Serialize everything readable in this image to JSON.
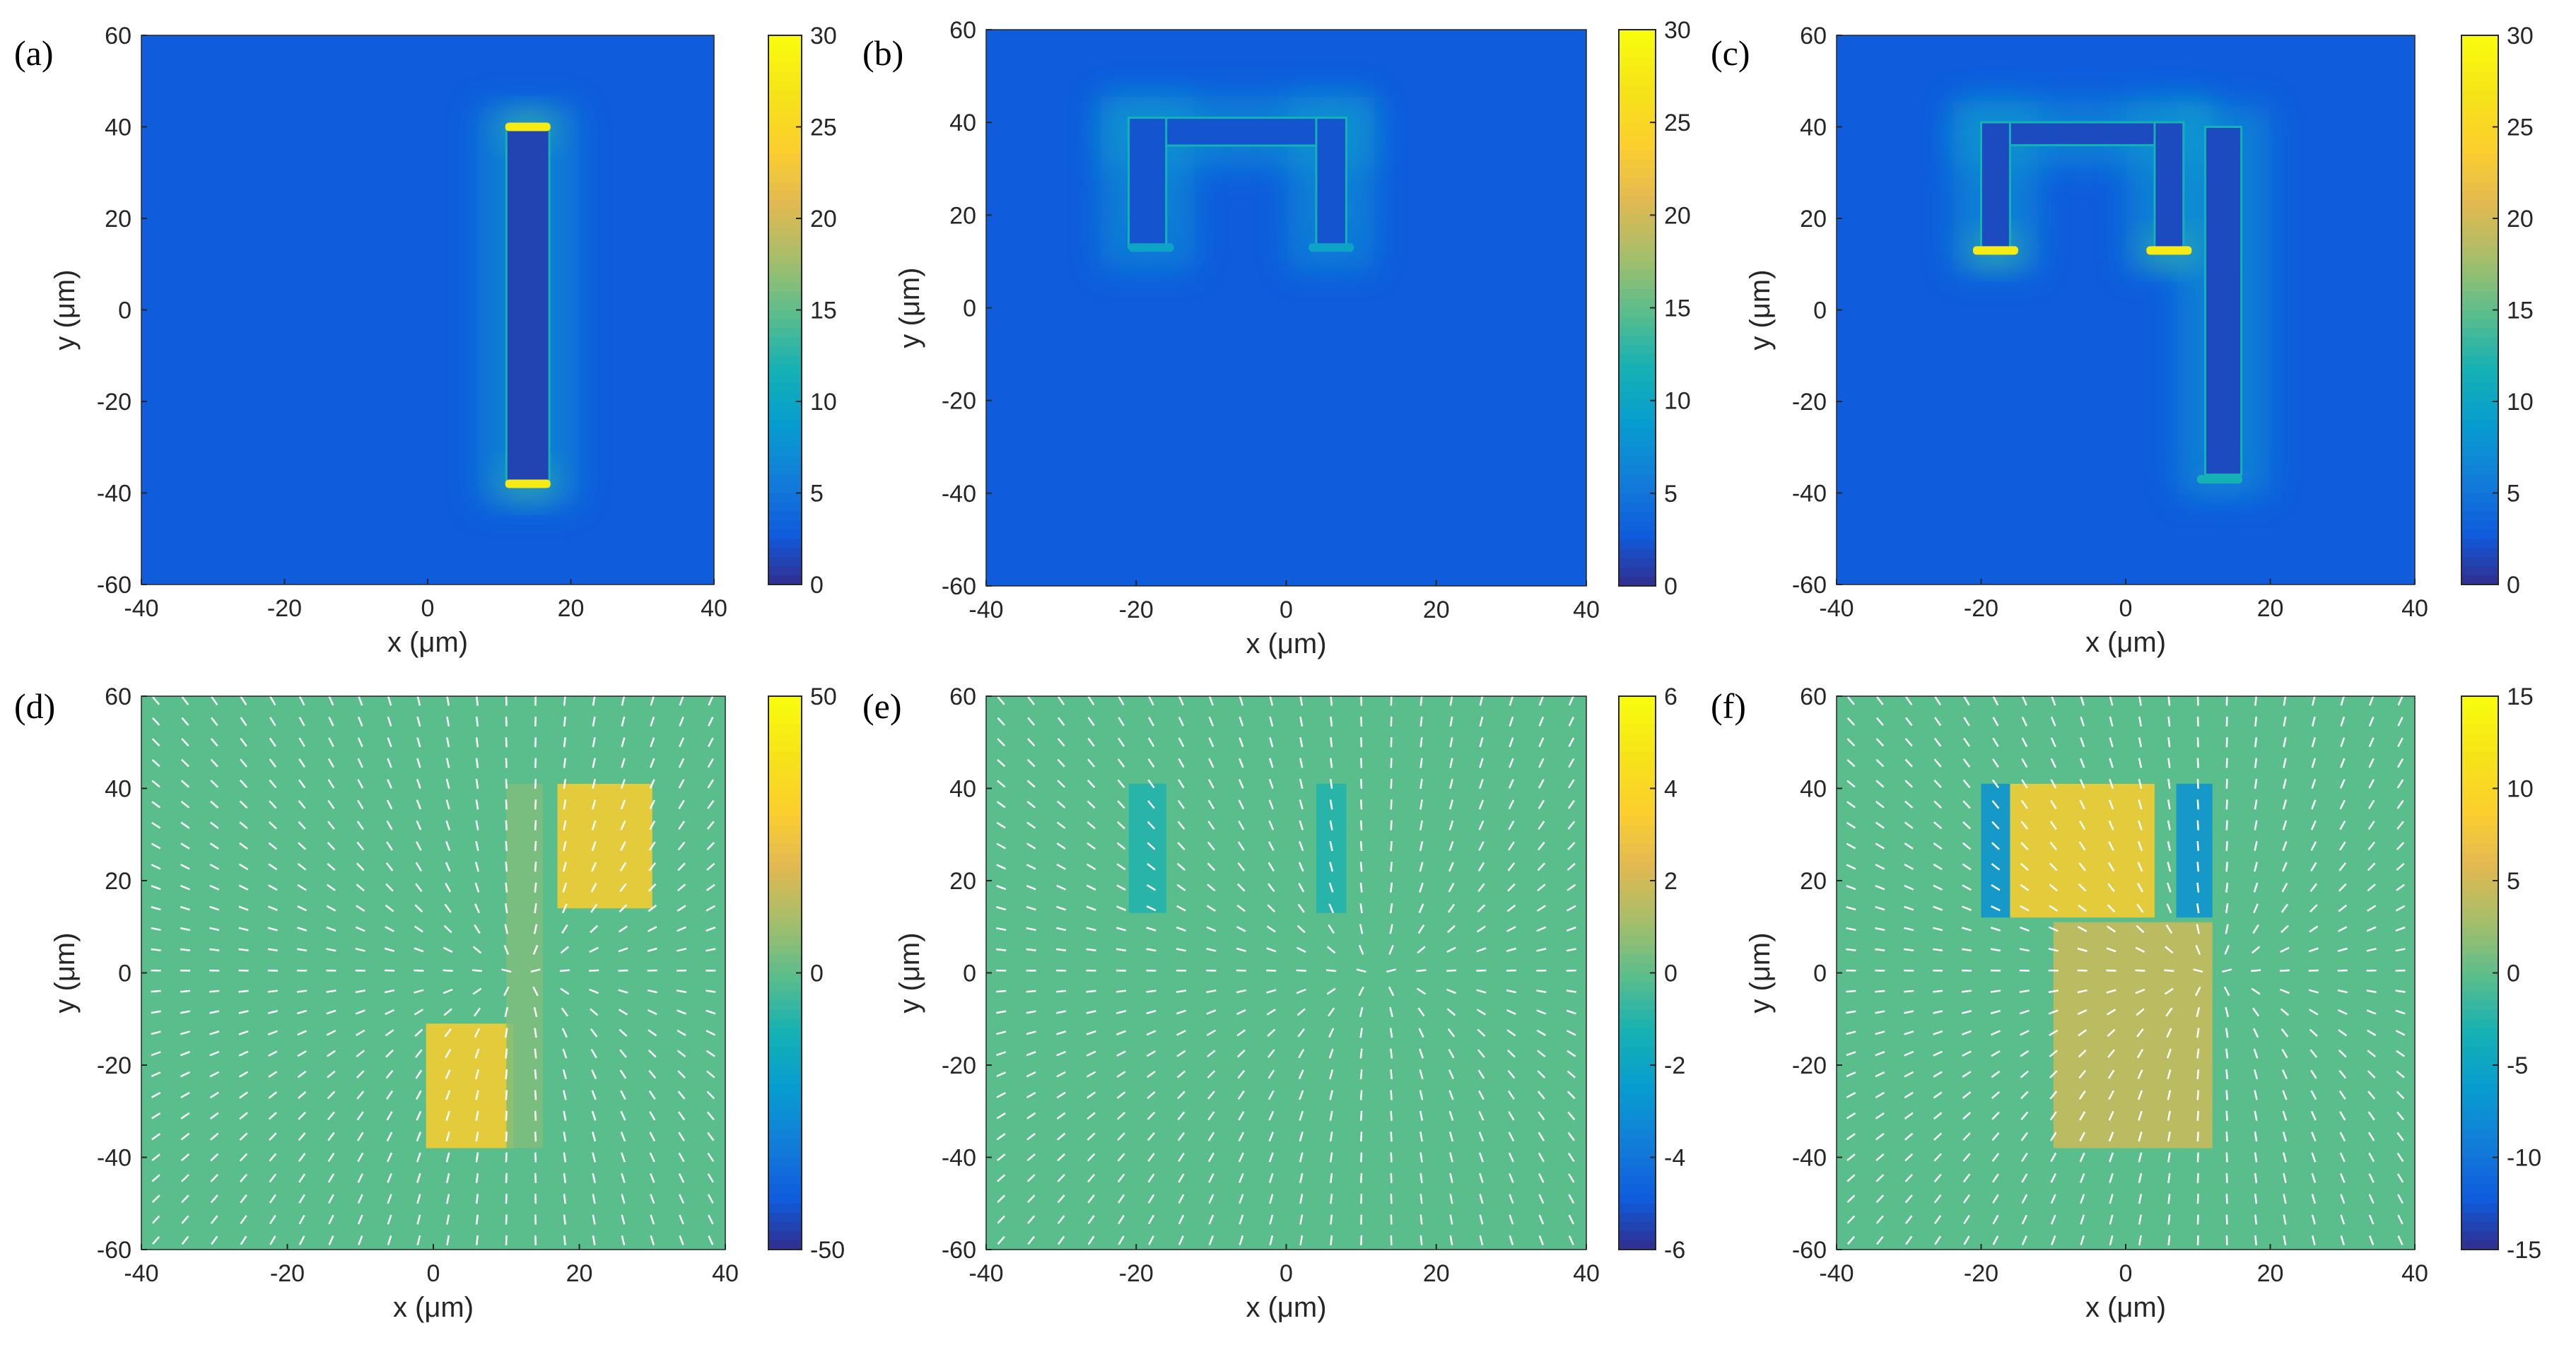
{
  "figure": {
    "description_free": true
  },
  "chart_data": [
    {
      "id": "a",
      "letter": "(a)",
      "type": "heatmap",
      "xlabel": "x (μm)",
      "ylabel": "y (μm)",
      "xlim": [
        -40,
        40
      ],
      "ylim": [
        -60,
        60
      ],
      "xticks": [
        -40,
        -20,
        0,
        20,
        40
      ],
      "yticks": [
        -60,
        -40,
        -20,
        0,
        20,
        40,
        60
      ],
      "colorbar": {
        "min": 0,
        "max": 30,
        "ticks": [
          0,
          5,
          10,
          15,
          20,
          25,
          30
        ]
      },
      "background_value": 3,
      "structures": [
        {
          "type": "bar",
          "x": [
            11,
            17
          ],
          "y": [
            -38,
            40
          ],
          "value": 1.5
        }
      ],
      "hotspots": [
        {
          "x": 14,
          "y": 40,
          "value": 28
        },
        {
          "x": 14,
          "y": -38,
          "value": 28
        }
      ]
    },
    {
      "id": "b",
      "letter": "(b)",
      "type": "heatmap",
      "xlabel": "x (μm)",
      "ylabel": "y (μm)",
      "xlim": [
        -40,
        40
      ],
      "ylim": [
        -60,
        60
      ],
      "xticks": [
        -40,
        -20,
        0,
        20,
        40
      ],
      "yticks": [
        -60,
        -40,
        -20,
        0,
        20,
        40,
        60
      ],
      "colorbar": {
        "min": 0,
        "max": 30,
        "ticks": [
          0,
          5,
          10,
          15,
          20,
          25,
          30
        ]
      },
      "background_value": 3,
      "structures": [
        {
          "type": "bar",
          "x": [
            -21,
            8
          ],
          "y": [
            35,
            41
          ],
          "value": 2.5
        },
        {
          "type": "bar",
          "x": [
            -21,
            -16
          ],
          "y": [
            13,
            41
          ],
          "value": 2.5
        },
        {
          "type": "bar",
          "x": [
            4,
            8
          ],
          "y": [
            13,
            41
          ],
          "value": 2.5
        }
      ],
      "hotspots": [
        {
          "x": -18,
          "y": 13,
          "value": 10
        },
        {
          "x": 6,
          "y": 13,
          "value": 10
        }
      ]
    },
    {
      "id": "c",
      "letter": "(c)",
      "type": "heatmap",
      "xlabel": "x (μm)",
      "ylabel": "y (μm)",
      "xlim": [
        -40,
        40
      ],
      "ylim": [
        -60,
        60
      ],
      "xticks": [
        -40,
        -20,
        0,
        20,
        40
      ],
      "yticks": [
        -60,
        -40,
        -20,
        0,
        20,
        40,
        60
      ],
      "colorbar": {
        "min": 0,
        "max": 30,
        "ticks": [
          0,
          5,
          10,
          15,
          20,
          25,
          30
        ]
      },
      "background_value": 3,
      "structures": [
        {
          "type": "bar",
          "x": [
            -20,
            8
          ],
          "y": [
            36,
            41
          ],
          "value": 2
        },
        {
          "type": "bar",
          "x": [
            -20,
            -16
          ],
          "y": [
            13,
            41
          ],
          "value": 2
        },
        {
          "type": "bar",
          "x": [
            4,
            8
          ],
          "y": [
            13,
            41
          ],
          "value": 2
        },
        {
          "type": "bar",
          "x": [
            11,
            16
          ],
          "y": [
            -36,
            40
          ],
          "value": 2
        }
      ],
      "hotspots": [
        {
          "x": -18,
          "y": 13,
          "value": 28
        },
        {
          "x": 6,
          "y": 13,
          "value": 28
        },
        {
          "x": 13,
          "y": -37,
          "value": 12
        }
      ]
    },
    {
      "id": "d",
      "letter": "(d)",
      "type": "heatmap",
      "xlabel": "x (μm)",
      "ylabel": "y (μm)",
      "xlim": [
        -40,
        40
      ],
      "ylim": [
        -60,
        60
      ],
      "xticks": [
        -40,
        -20,
        0,
        20,
        40
      ],
      "yticks": [
        -60,
        -40,
        -20,
        0,
        20,
        40,
        60
      ],
      "colorbar": {
        "min": -50,
        "max": 50,
        "ticks": [
          -50,
          0,
          50
        ]
      },
      "background_value": 0,
      "regions": [
        {
          "x": [
            17,
            30
          ],
          "y": [
            14,
            41
          ],
          "value": 30
        },
        {
          "x": [
            -1,
            11
          ],
          "y": [
            -38,
            -11
          ],
          "value": 30
        },
        {
          "x": [
            10,
            15
          ],
          "y": [
            -38,
            41
          ],
          "value": 5
        }
      ],
      "arrows": true
    },
    {
      "id": "e",
      "letter": "(e)",
      "type": "heatmap",
      "xlabel": "x (μm)",
      "ylabel": "y (μm)",
      "xlim": [
        -40,
        40
      ],
      "ylim": [
        -60,
        60
      ],
      "xticks": [
        -40,
        -20,
        0,
        20,
        40
      ],
      "yticks": [
        -60,
        -40,
        -20,
        0,
        20,
        40,
        60
      ],
      "colorbar": {
        "min": -6,
        "max": 6,
        "ticks": [
          -6,
          -4,
          -2,
          0,
          2,
          4,
          6
        ]
      },
      "background_value": 0,
      "regions": [
        {
          "x": [
            -21,
            -16
          ],
          "y": [
            13,
            41
          ],
          "value": -1
        },
        {
          "x": [
            4,
            8
          ],
          "y": [
            13,
            41
          ],
          "value": -1
        }
      ],
      "arrows": true
    },
    {
      "id": "f",
      "letter": "(f)",
      "type": "heatmap",
      "xlabel": "x (μm)",
      "ylabel": "y (μm)",
      "xlim": [
        -40,
        40
      ],
      "ylim": [
        -60,
        60
      ],
      "xticks": [
        -40,
        -20,
        0,
        20,
        40
      ],
      "yticks": [
        -60,
        -40,
        -20,
        0,
        20,
        40,
        60
      ],
      "colorbar": {
        "min": -15,
        "max": 15,
        "ticks": [
          -15,
          -10,
          -5,
          0,
          5,
          10,
          15
        ]
      },
      "background_value": 0,
      "regions": [
        {
          "x": [
            -16,
            4
          ],
          "y": [
            12,
            41
          ],
          "value": 9
        },
        {
          "x": [
            -20,
            -16
          ],
          "y": [
            12,
            41
          ],
          "value": -7
        },
        {
          "x": [
            7,
            12
          ],
          "y": [
            12,
            41
          ],
          "value": -7
        },
        {
          "x": [
            -10,
            12
          ],
          "y": [
            -38,
            11
          ],
          "value": 5
        }
      ],
      "arrows": true
    }
  ]
}
